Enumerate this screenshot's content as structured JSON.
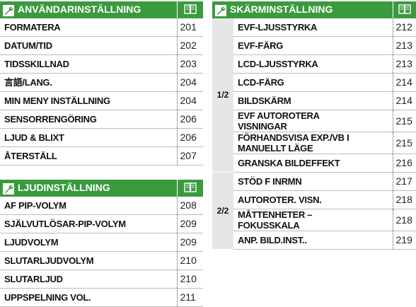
{
  "left_sections": [
    {
      "title": "ANVÄNDARINSTÄLLNING",
      "rows": [
        {
          "label": "FORMATERA",
          "page": 201
        },
        {
          "label": "DATUM/TID",
          "page": 202
        },
        {
          "label": "TIDSSKILLNAD",
          "page": 203
        },
        {
          "label": "言語/LANG.",
          "page": 204
        },
        {
          "label": "MIN MENY INSTÄLLNING",
          "page": 204
        },
        {
          "label": "SENSORRENGÖRING",
          "page": 206
        },
        {
          "label": "LJUD & BLIXT",
          "page": 206
        },
        {
          "label": "ÅTERSTÄLL",
          "page": 207
        }
      ]
    },
    {
      "title": "LJUDINSTÄLLNING",
      "rows": [
        {
          "label": "AF PIP-VOLYM",
          "page": 208
        },
        {
          "label": "SJÄLVUTLÖSAR-PIP-VOLYM",
          "page": 209
        },
        {
          "label": "LJUDVOLYM",
          "page": 209
        },
        {
          "label": "SLUTARLJUDVOLYM",
          "page": 210
        },
        {
          "label": "SLUTARLJUD",
          "page": 210
        },
        {
          "label": "UPPSPELNING VOL.",
          "page": 211
        }
      ]
    }
  ],
  "right_section": {
    "title": "SKÄRMINSTÄLLNING",
    "groups": [
      {
        "label": "1/2",
        "rows": [
          {
            "label": "EVF-LJUSSTYRKA",
            "page": 212
          },
          {
            "label": "EVF-FÄRG",
            "page": 213
          },
          {
            "label": "LCD-LJUSSTYRKA",
            "page": 213
          },
          {
            "label": "LCD-FÄRG",
            "page": 214
          },
          {
            "label": "BILDSKÄRM",
            "page": 214
          },
          {
            "label": "EVF AUTOROTERA VISNINGAR",
            "page": 215
          },
          {
            "label": "FÖRHANDSVISA EXP./VB I MANUELLT LÄGE",
            "page": 215
          },
          {
            "label": "GRANSKA BILDEFFEKT",
            "page": 216
          }
        ]
      },
      {
        "label": "2/2",
        "rows": [
          {
            "label": "STÖD F INRMN",
            "page": 217
          },
          {
            "label": "AUTOROTER. VISN.",
            "page": 218
          },
          {
            "label": "MÅTTENHETER – FOKUSSKALA",
            "page": 218
          },
          {
            "label": "ANP. BILD.INST..",
            "page": 219
          }
        ]
      }
    ]
  }
}
